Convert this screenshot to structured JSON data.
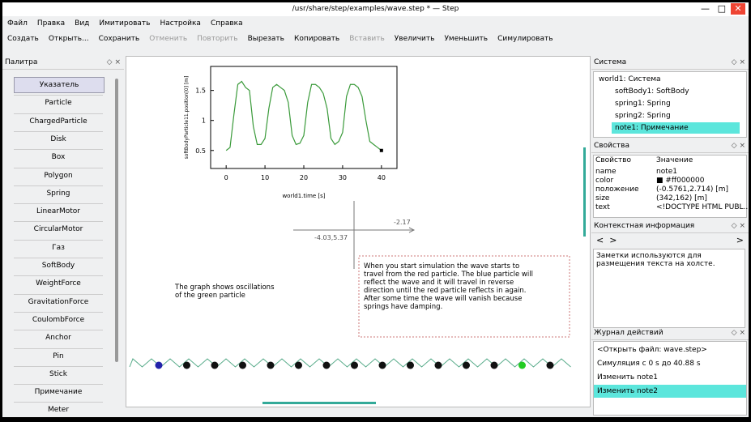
{
  "window": {
    "title": "/usr/share/step/examples/wave.step * — Step"
  },
  "menu": [
    "Файл",
    "Правка",
    "Вид",
    "Имитировать",
    "Настройка",
    "Справка"
  ],
  "toolbar": [
    {
      "label": "Создать",
      "enabled": true
    },
    {
      "label": "Открыть...",
      "enabled": true
    },
    {
      "label": "Сохранить",
      "enabled": true
    },
    {
      "label": "Отменить",
      "enabled": false
    },
    {
      "label": "Повторить",
      "enabled": false
    },
    {
      "label": "Вырезать",
      "enabled": true
    },
    {
      "label": "Копировать",
      "enabled": true
    },
    {
      "label": "Вставить",
      "enabled": false
    },
    {
      "label": "Увеличить",
      "enabled": true
    },
    {
      "label": "Уменьшить",
      "enabled": true
    },
    {
      "label": "Симулировать",
      "enabled": true
    }
  ],
  "palette": {
    "title": "Палитра",
    "items": [
      "Указатель",
      "Particle",
      "ChargedParticle",
      "Disk",
      "Box",
      "Polygon",
      "Spring",
      "LinearMotor",
      "CircularMotor",
      "Газ",
      "SoftBody",
      "WeightForce",
      "GravitationForce",
      "CoulombForce",
      "Anchor",
      "Pin",
      "Stick",
      "Примечание",
      "Meter"
    ]
  },
  "canvas": {
    "plot": {
      "type": "line",
      "xlabel": "world1.time [s]",
      "ylabel": "softBodyParticle11.position[0] [m]",
      "color": "#3a9a3a",
      "x": [
        0,
        1,
        2,
        3,
        4,
        5,
        6,
        7,
        8,
        9,
        10,
        11,
        12,
        13,
        14,
        15,
        16,
        17,
        18,
        19,
        20,
        21,
        22,
        23,
        24,
        25,
        26,
        27,
        28,
        29,
        30,
        31,
        32,
        33,
        34,
        35,
        36,
        37,
        38,
        39,
        40
      ],
      "y": [
        0.5,
        0.55,
        1.1,
        1.6,
        1.65,
        1.55,
        1.5,
        0.9,
        0.6,
        0.6,
        0.7,
        1.2,
        1.55,
        1.6,
        1.55,
        1.5,
        1.3,
        0.75,
        0.6,
        0.62,
        0.75,
        1.3,
        1.6,
        1.6,
        1.55,
        1.45,
        1.2,
        0.7,
        0.6,
        0.65,
        0.8,
        1.4,
        1.6,
        1.6,
        1.55,
        1.4,
        1.0,
        0.65,
        0.6,
        0.55,
        0.5
      ],
      "xlim": [
        -4,
        44
      ],
      "ylim": [
        0.2,
        1.9
      ],
      "xticks": [
        0,
        10,
        20,
        30,
        40
      ],
      "yticks": [
        0.5,
        1,
        1.5
      ]
    },
    "axes": {
      "x_label": "-2.17",
      "origin_label": "-4.03,5.37"
    },
    "note1": [
      "The graph shows oscillations",
      "of the green particle"
    ],
    "note2": [
      "When you start simulation the wave starts to",
      "travel from the red particle. The blue particle will",
      "reflect the wave and it will travel in reverse",
      "direction until the red particle reflects in again.",
      "After some time the wave will vanish because",
      "springs have damping."
    ]
  },
  "system": {
    "title": "Система",
    "tree": [
      "world1: Система",
      "softBody1: SoftBody",
      "spring1: Spring",
      "spring2: Spring",
      "note1: Примечание"
    ]
  },
  "properties": {
    "title": "Свойства",
    "header": [
      "Свойство",
      "Значение"
    ],
    "rows": [
      [
        "name",
        "note1"
      ],
      [
        "color",
        "■ #ff000000"
      ],
      [
        "положение",
        "(-0.5761,2.714) [m]"
      ],
      [
        "size",
        "(342,162) [m]"
      ],
      [
        "text",
        "<!DOCTYPE HTML PUBL..."
      ]
    ]
  },
  "context": {
    "title": "Контекстная информация",
    "text": "Заметки используются для размещения текста на холсте."
  },
  "log": {
    "title": "Журнал действий",
    "items": [
      "<Открыть файл: wave.step>",
      "Симуляция с 0 s до 40.88 s",
      "Изменить note1",
      "Изменить note2"
    ]
  }
}
